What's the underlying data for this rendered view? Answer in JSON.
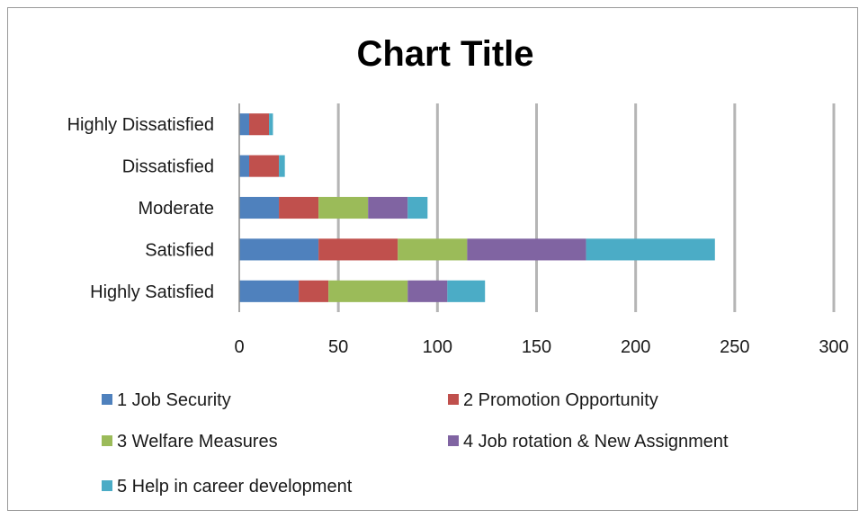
{
  "chart_data": {
    "type": "bar",
    "orientation": "horizontal",
    "stacked": true,
    "title": "Chart Title",
    "xlabel": "",
    "ylabel": "",
    "categories": [
      "Highly Dissatisfied",
      "Dissatisfied",
      "Moderate",
      "Satisfied",
      "Highly Satisfied"
    ],
    "series": [
      {
        "name": "1 Job Security",
        "color": "#4f81bd",
        "values": [
          5,
          5,
          20,
          40,
          30
        ]
      },
      {
        "name": "2 Promotion Opportunity",
        "color": "#c0504d",
        "values": [
          10,
          15,
          20,
          40,
          15
        ]
      },
      {
        "name": "3 Welfare Measures",
        "color": "#9bbb59",
        "values": [
          0,
          0,
          25,
          35,
          40
        ]
      },
      {
        "name": "4 Job rotation & New Assignment",
        "color": "#8064a2",
        "values": [
          0,
          0,
          20,
          60,
          20
        ]
      },
      {
        "name": "5 Help in career development",
        "color": "#4bacc6",
        "values": [
          2,
          3,
          10,
          65,
          19
        ]
      }
    ],
    "xlim": [
      0,
      300
    ],
    "xticks": [
      "0",
      "50",
      "100",
      "150",
      "200",
      "250",
      "300"
    ],
    "grid": true,
    "legend_position": "bottom"
  }
}
